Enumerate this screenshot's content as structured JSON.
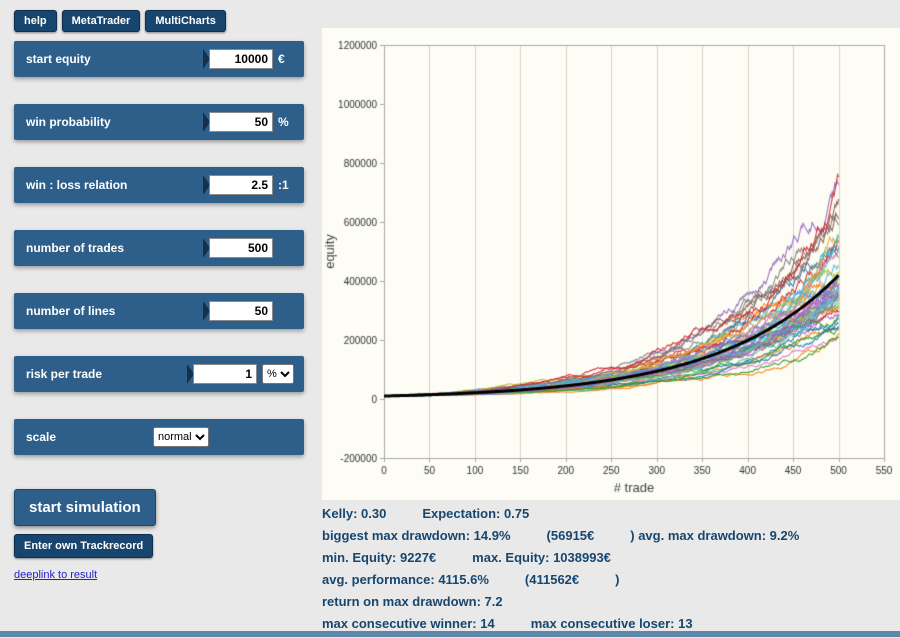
{
  "toolbar": {
    "help": "help",
    "metatrader": "MetaTrader",
    "multicharts": "MultiCharts"
  },
  "panels": [
    {
      "label": "start equity",
      "value": "10000",
      "unit": "€"
    },
    {
      "label": "win probability",
      "value": "50",
      "unit": "%"
    },
    {
      "label": "win : loss relation",
      "value": "2.5",
      "unit": ":1"
    },
    {
      "label": "number of trades",
      "value": "500",
      "unit": ""
    },
    {
      "label": "number of lines",
      "value": "50",
      "unit": ""
    },
    {
      "label": "risk per trade",
      "value": "1",
      "unit": "",
      "select_value": "%"
    },
    {
      "label": "scale",
      "select_value": "normal"
    }
  ],
  "actions": {
    "start_simulation": "start simulation",
    "enter_trackrecord": "Enter own Trackrecord",
    "deeplink": "deeplink to result"
  },
  "stats": {
    "kelly": "Kelly: 0.30",
    "expectation": "Expectation: 0.75",
    "biggest_dd": "biggest max drawdown: 14.9%",
    "biggest_dd_eur": "(56915€",
    "avg_dd": ") avg. max drawdown: 9.2%",
    "min_equity": "min. Equity: 9227€",
    "max_equity": "max. Equity: 1038993€",
    "avg_perf": "avg. performance: 4115.6%",
    "avg_perf_eur": "(411562€",
    "avg_perf_close": ")",
    "return_on_dd": "return on max drawdown: 7.2",
    "max_winner": "max consecutive winner: 14",
    "max_loser": "max consecutive loser: 13"
  },
  "chart_data": {
    "type": "line",
    "title": "",
    "xlabel": "# trade",
    "ylabel": "equity",
    "xlim": [
      0,
      550
    ],
    "ylim": [
      -200000,
      1200000
    ],
    "x_ticks": [
      0,
      50,
      100,
      150,
      200,
      250,
      300,
      350,
      400,
      450,
      500,
      550
    ],
    "y_ticks": [
      -200000,
      0,
      200000,
      400000,
      600000,
      800000,
      1000000,
      1200000
    ],
    "grid": "vertical",
    "legend": "none",
    "simulation": {
      "start_equity": 10000,
      "win_probability_pct": 50,
      "win_loss_relation": 2.5,
      "number_of_trades": 500,
      "number_of_lines": 50,
      "risk_per_trade_pct": 1,
      "avg_final_equity": 421562,
      "max_final_equity": 1038993,
      "min_final_equity_shown": 160000
    },
    "mean_line_color": "#000000",
    "plot_bg": "#fdfdf6",
    "grid_color": "#d4d4ca",
    "border_color": "#aaaaaa",
    "palette": [
      "#1f77b4",
      "#ff7f0e",
      "#2ca02c",
      "#d62728",
      "#9467bd",
      "#8c564b",
      "#e377c2",
      "#7f7f7f",
      "#bcbd22",
      "#17becf",
      "#4c9be8",
      "#e8a33d",
      "#66c2a5",
      "#b05cc6",
      "#5ab4d6"
    ]
  },
  "colors": {
    "panel_blue": "#2d5f8a",
    "button_dark_blue": "#17456e",
    "stats_text": "#17466f",
    "page_bg": "#e9e9e9"
  }
}
